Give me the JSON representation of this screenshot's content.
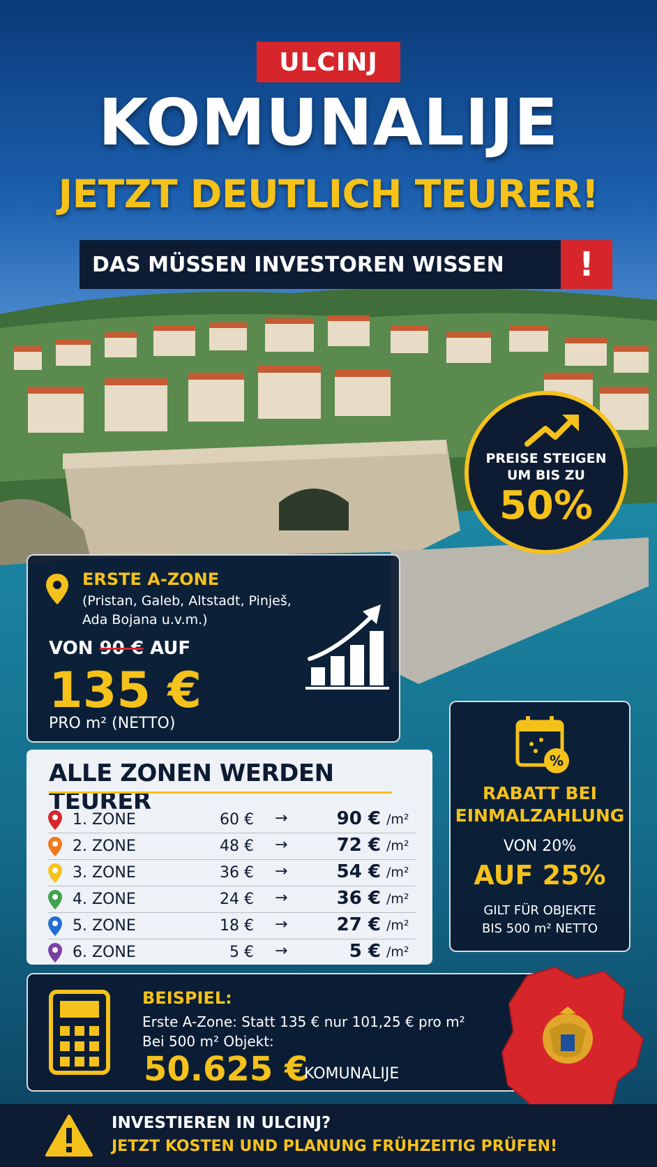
{
  "header": {
    "city": "ULCINJ",
    "headline": "KOMUNALIJE",
    "subheadline": "JETZT DEUTLICH TEURER!",
    "banner": "DAS MÜSSEN INVESTOREN WISSEN",
    "banner_alert": "!"
  },
  "badge": {
    "line1": "PREISE STEIGEN",
    "line2": "UM BIS ZU",
    "value": "50%",
    "icon": "trend-up-arrow-icon"
  },
  "zone_a": {
    "title": "ERSTE A-ZONE",
    "areas": "(Pristan, Galeb, Altstadt, Pinješ, Ada Bojana u.v.m.)",
    "from_label": "VON",
    "old_price": "90 €",
    "to_label": "AUF",
    "new_price": "135 €",
    "unit": "PRO m² (NETTO)",
    "icons": [
      "location-pin-icon",
      "growth-chart-icon"
    ]
  },
  "zones": {
    "title": "ALLE ZONEN WERDEN TEURER",
    "arrow": "→",
    "unit": "/m²",
    "rows": [
      {
        "name": "1. ZONE",
        "old": "60 €",
        "new": "90 €",
        "color": "#d7262b"
      },
      {
        "name": "2. ZONE",
        "old": "48 €",
        "new": "72 €",
        "color": "#f07a1a"
      },
      {
        "name": "3. ZONE",
        "old": "36 €",
        "new": "54 €",
        "color": "#f5c11b"
      },
      {
        "name": "4. ZONE",
        "old": "24 €",
        "new": "36 €",
        "color": "#3fa34d"
      },
      {
        "name": "5. ZONE",
        "old": "18 €",
        "new": "27 €",
        "color": "#1f6fd6"
      },
      {
        "name": "6. ZONE",
        "old": "5 €",
        "new": "5 €",
        "color": "#7b3fa6"
      }
    ]
  },
  "discount": {
    "title_line1": "RABATT BEI",
    "title_line2": "EINMALZAHLUNG",
    "from": "VON 20%",
    "to": "AUF 25%",
    "note_line1": "GILT FÜR OBJEKTE",
    "note_line2": "BIS 500 m² NETTO",
    "icon": "calendar-discount-icon"
  },
  "example": {
    "label": "BEISPIEL:",
    "line1": "Erste A-Zone: Statt 135 € nur 101,25 € pro m²",
    "line2": "Bei 500 m² Objekt:",
    "total": "50.625 €",
    "total_label": "KOMUNALIJE",
    "icon": "calculator-icon"
  },
  "footer": {
    "question": "INVESTIEREN IN ULCINJ?",
    "cta": "JETZT KOSTEN UND PLANUNG FRÜHZEITIG PRÜFEN!",
    "icon": "warning-icon"
  },
  "colors": {
    "accent_yellow": "#f5c11b",
    "alert_red": "#d7262b",
    "navy": "#0d1b33"
  }
}
